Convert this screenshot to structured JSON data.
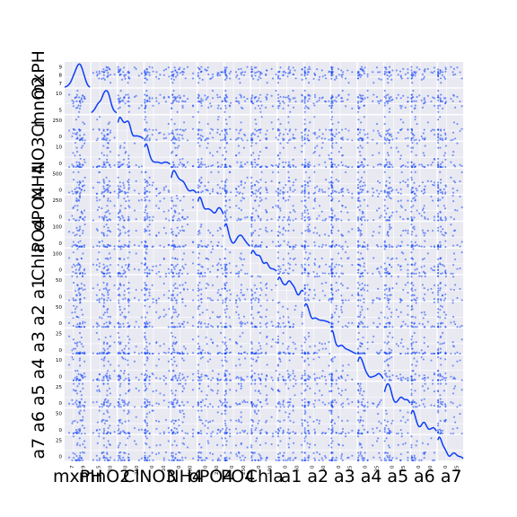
{
  "chart_data": {
    "type": "scatter",
    "subtype": "scatter-matrix",
    "diagonal": "kde",
    "title": "",
    "point_color": "#0a3ef7",
    "line_color": "#0a3ef7",
    "panel_background": "#e9e9f2",
    "grid": true,
    "variables": [
      {
        "name": "mxPH",
        "range": [
          5.6,
          9.7
        ],
        "ticks": [
          "7",
          "9"
        ],
        "ytick_labels": [
          "9",
          "8",
          "7"
        ]
      },
      {
        "name": "mnO2",
        "range": [
          1.5,
          13.4
        ],
        "ticks": [
          "5",
          "10"
        ],
        "ytick_labels": [
          "10",
          "5"
        ]
      },
      {
        "name": "Cl",
        "range": [
          0,
          391
        ],
        "ticks": [
          "0",
          "250"
        ],
        "ytick_labels": [
          "250",
          "0"
        ]
      },
      {
        "name": "NO3",
        "range": [
          0,
          45.7
        ],
        "ticks": [
          "0",
          "10"
        ],
        "ytick_labels": [
          "10",
          "0"
        ]
      },
      {
        "name": "NH4",
        "range": [
          0,
          24064
        ],
        "ticks": [
          "0",
          "500"
        ],
        "ytick_labels": [
          "500",
          "0"
        ]
      },
      {
        "name": "oPO4",
        "range": [
          0,
          564
        ],
        "ticks": [
          "0",
          "250"
        ],
        "ytick_labels": [
          "250",
          "0"
        ]
      },
      {
        "name": "PO4",
        "range": [
          0,
          771
        ],
        "ticks": [
          "0",
          "250"
        ],
        "ytick_labels": [
          "100",
          "0"
        ]
      },
      {
        "name": "Chla",
        "range": [
          0,
          110
        ],
        "ticks": [
          "0",
          "100"
        ],
        "ytick_labels": [
          "100",
          "0"
        ]
      },
      {
        "name": "a1",
        "range": [
          0,
          89.8
        ],
        "ticks": [
          "0",
          "50"
        ],
        "ytick_labels": [
          "50",
          "0"
        ]
      },
      {
        "name": "a2",
        "range": [
          0,
          72.6
        ],
        "ticks": [
          "0",
          "50"
        ],
        "ytick_labels": [
          "50",
          "0"
        ]
      },
      {
        "name": "a3",
        "range": [
          0,
          42.8
        ],
        "ticks": [
          "0",
          "25"
        ],
        "ytick_labels": [
          "25",
          "0"
        ]
      },
      {
        "name": "a4",
        "range": [
          0,
          44.6
        ],
        "ticks": [
          "0",
          "25"
        ],
        "ytick_labels": [
          "10",
          "0"
        ]
      },
      {
        "name": "a5",
        "range": [
          0,
          44.4
        ],
        "ticks": [
          "0",
          "25"
        ],
        "ytick_labels": [
          "25",
          "0"
        ]
      },
      {
        "name": "a6",
        "range": [
          0,
          77.6
        ],
        "ticks": [
          "0",
          "50"
        ],
        "ytick_labels": [
          "50",
          "0"
        ]
      },
      {
        "name": "a7",
        "range": [
          0,
          31.6
        ],
        "ticks": [
          "0",
          "25"
        ],
        "ytick_labels": [
          "25",
          "0"
        ]
      }
    ]
  }
}
